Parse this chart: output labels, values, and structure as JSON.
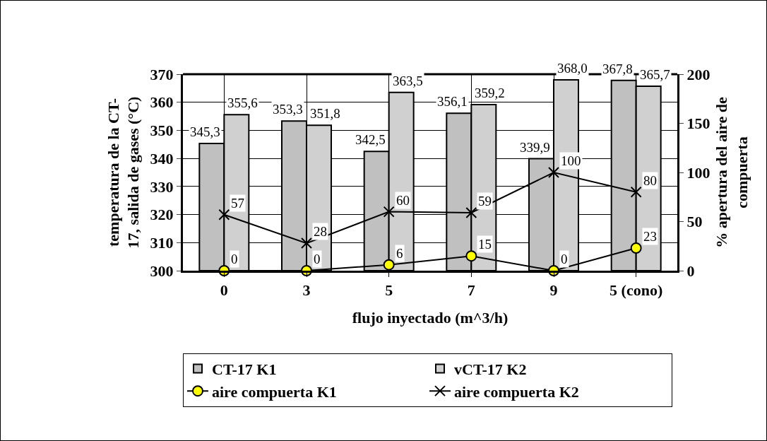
{
  "chart_data": {
    "type": "bar",
    "xlabel": "flujo inyectado (m^3/h)",
    "ylabel": "temperatura de la CT-17, salida de gases (°C)",
    "y2label": "% apertura del aire de compuerta",
    "categories": [
      "0",
      "3",
      "5",
      "7",
      "9",
      "5 (cono)"
    ],
    "series": [
      {
        "name": "CT-17 K1",
        "color": "#c0c0c0",
        "values": [
          345.3,
          353.3,
          342.5,
          356.1,
          339.9,
          367.8
        ],
        "value_labels": [
          "345,3",
          "353,3",
          "342,5",
          "356,1",
          "339,9",
          "367,8"
        ]
      },
      {
        "name": "vCT-17 K2",
        "color": "#d0d0d0",
        "values": [
          355.6,
          351.8,
          363.5,
          359.2,
          368.0,
          365.7
        ],
        "value_labels": [
          "355,6",
          "351,8",
          "363,5",
          "359,2",
          "368,0",
          "365,7"
        ]
      },
      {
        "name": "aire compuerta K1",
        "type": "line",
        "axis": "y2",
        "color": "#ffff00",
        "marker": "circle",
        "values": [
          0,
          0,
          6,
          15,
          0,
          23
        ],
        "value_labels": [
          "0",
          "0",
          "6",
          "15",
          "0",
          "23"
        ]
      },
      {
        "name": "aire compuerta K2",
        "type": "line",
        "axis": "y2",
        "color": "#000000",
        "marker": "cross",
        "values": [
          57,
          28,
          60,
          59,
          100,
          80
        ],
        "value_labels": [
          "57",
          "28",
          "60",
          "59",
          "100",
          "80"
        ]
      }
    ],
    "ylim": [
      300,
      370
    ],
    "yticks": [
      300,
      310,
      320,
      330,
      340,
      350,
      360,
      370
    ],
    "y2lim": [
      0,
      200
    ],
    "y2ticks": [
      0,
      50,
      100,
      150,
      200
    ],
    "grid": true,
    "legend": "bottom"
  }
}
